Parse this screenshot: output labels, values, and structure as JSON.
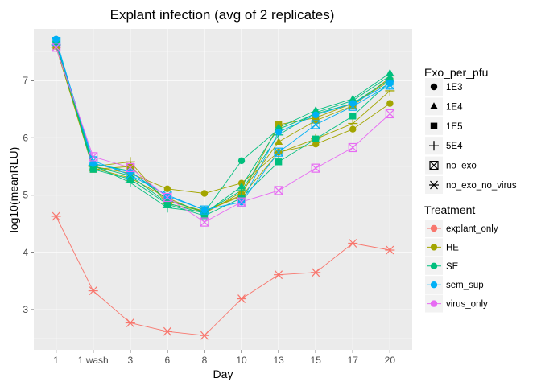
{
  "chart_data": {
    "type": "line",
    "title": "Explant infection (avg of 2 replicates)",
    "xlabel": "Day",
    "ylabel": "log10(meanRLU)",
    "x": [
      "1",
      "1 wash",
      "3",
      "6",
      "8",
      "10",
      "13",
      "15",
      "17",
      "20"
    ],
    "ylim": [
      2.3,
      7.9
    ],
    "yticks": [
      3,
      4,
      5,
      6,
      7
    ],
    "grid": true,
    "legend_position": "right",
    "colors": {
      "explant_only": "#F8766D",
      "HE": "#A3A500",
      "SE": "#00BF7D",
      "sem_sup": "#00B0F6",
      "virus_only": "#E76BF3"
    },
    "legends": [
      {
        "title": "Exo_per_pfu",
        "entries": [
          {
            "label": "1E3",
            "shape": "circle"
          },
          {
            "label": "1E4",
            "shape": "triangle"
          },
          {
            "label": "1E5",
            "shape": "square"
          },
          {
            "label": "5E4",
            "shape": "plus"
          },
          {
            "label": "no_exo",
            "shape": "square-x"
          },
          {
            "label": "no_exo_no_virus",
            "shape": "asterisk"
          }
        ]
      },
      {
        "title": "Treatment",
        "entries": [
          {
            "label": "explant_only",
            "color": "#F8766D"
          },
          {
            "label": "HE",
            "color": "#A3A500"
          },
          {
            "label": "SE",
            "color": "#00BF7D"
          },
          {
            "label": "sem_sup",
            "color": "#00B0F6"
          },
          {
            "label": "virus_only",
            "color": "#E76BF3"
          }
        ]
      }
    ],
    "series": [
      {
        "treatment": "explant_only",
        "exo": "no_exo_no_virus",
        "values": [
          4.63,
          3.33,
          2.77,
          2.62,
          2.55,
          3.19,
          3.61,
          3.65,
          4.16,
          4.04
        ]
      },
      {
        "treatment": "HE",
        "exo": "1E3",
        "values": [
          7.6,
          5.5,
          5.38,
          5.11,
          5.03,
          5.21,
          5.75,
          5.89,
          6.15,
          6.6
        ]
      },
      {
        "treatment": "HE",
        "exo": "1E4",
        "values": [
          7.62,
          5.47,
          5.3,
          4.95,
          4.68,
          5.05,
          5.93,
          6.3,
          6.56,
          7.05
        ]
      },
      {
        "treatment": "HE",
        "exo": "1E5",
        "values": [
          7.6,
          5.45,
          5.5,
          4.9,
          4.72,
          5.0,
          6.23,
          6.35,
          6.6,
          6.99
        ]
      },
      {
        "treatment": "HE",
        "exo": "5E4",
        "values": [
          7.58,
          5.5,
          5.58,
          4.85,
          4.72,
          4.98,
          5.74,
          5.98,
          6.25,
          6.82
        ]
      },
      {
        "treatment": "SE",
        "exo": "1E3",
        "values": [
          7.65,
          5.55,
          5.42,
          4.92,
          4.7,
          5.6,
          6.15,
          6.42,
          6.6,
          7.02
        ]
      },
      {
        "treatment": "SE",
        "exo": "1E4",
        "values": [
          7.72,
          5.5,
          5.34,
          4.86,
          4.68,
          5.15,
          6.18,
          6.48,
          6.68,
          7.13
        ]
      },
      {
        "treatment": "SE",
        "exo": "1E5",
        "values": [
          7.7,
          5.45,
          5.28,
          4.84,
          4.64,
          4.95,
          5.58,
          5.98,
          6.38,
          6.98
        ]
      },
      {
        "treatment": "SE",
        "exo": "5E4",
        "values": [
          7.62,
          5.52,
          5.22,
          4.78,
          4.7,
          5.08,
          6.05,
          6.44,
          6.65,
          7.08
        ]
      },
      {
        "treatment": "sem_sup",
        "exo": "1E3",
        "values": [
          7.72,
          5.55,
          5.4,
          4.98,
          4.74,
          4.88,
          6.1,
          6.4,
          6.6,
          6.95
        ]
      },
      {
        "treatment": "sem_sup",
        "exo": "no_exo",
        "values": [
          7.68,
          5.6,
          5.35,
          5.0,
          4.74,
          4.88,
          5.75,
          6.23,
          6.55,
          6.92
        ]
      },
      {
        "treatment": "virus_only",
        "exo": "no_exo",
        "values": [
          7.58,
          5.67,
          5.48,
          4.96,
          4.53,
          4.88,
          5.08,
          5.47,
          5.83,
          6.42
        ]
      }
    ]
  }
}
